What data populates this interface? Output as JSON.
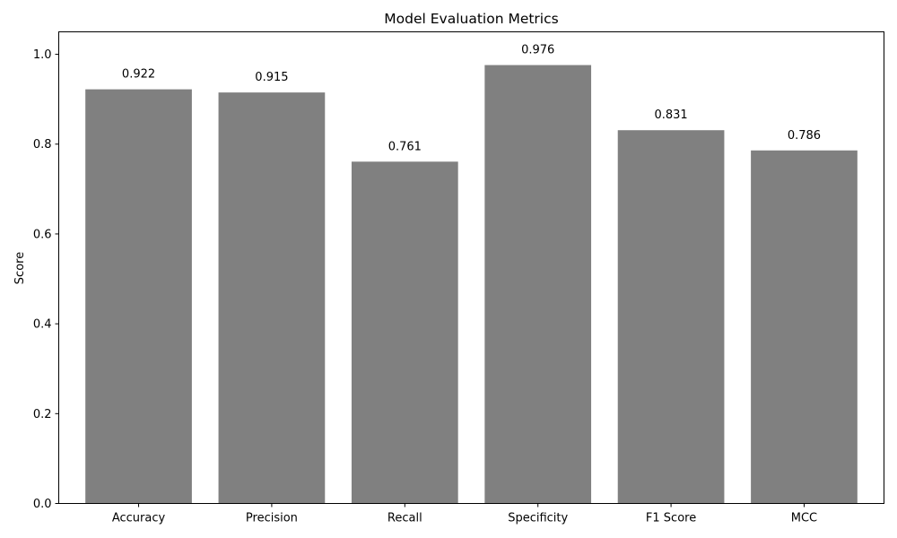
{
  "chart_data": {
    "type": "bar",
    "title": "Model Evaluation Metrics",
    "xlabel": "",
    "ylabel": "Score",
    "categories": [
      "Accuracy",
      "Precision",
      "Recall",
      "Specificity",
      "F1 Score",
      "MCC"
    ],
    "values": [
      0.922,
      0.915,
      0.761,
      0.976,
      0.831,
      0.786
    ],
    "value_labels": [
      "0.922",
      "0.915",
      "0.761",
      "0.976",
      "0.831",
      "0.786"
    ],
    "ylim": [
      0,
      1.05
    ],
    "yticks": [
      0.0,
      0.2,
      0.4,
      0.6,
      0.8,
      1.0
    ],
    "ytick_labels": [
      "0.0",
      "0.2",
      "0.4",
      "0.6",
      "0.8",
      "1.0"
    ],
    "grid": false,
    "legend": "none",
    "bar_color": "#808080"
  }
}
